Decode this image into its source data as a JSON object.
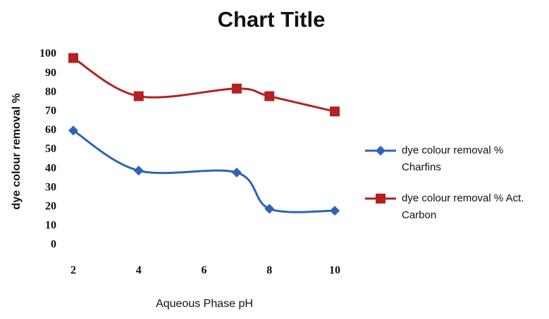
{
  "chart_data": {
    "type": "line",
    "title": "Chart Title",
    "x_label": "Aqueous Phase pH",
    "y_label": "dye colour removal %",
    "x": [
      2,
      4,
      7,
      8,
      10
    ],
    "series": [
      {
        "name": "dye colour removal % Charfins",
        "color": "#2e63b8",
        "marker": "diamond",
        "values": [
          60,
          39,
          38,
          19,
          18
        ]
      },
      {
        "name": "dye colour removal % Act. Carbon",
        "color": "#b22222",
        "marker": "square",
        "values": [
          98,
          78,
          82,
          78,
          70
        ]
      }
    ],
    "xlim": [
      2,
      10
    ],
    "xticks": [
      2,
      4,
      6,
      8,
      10
    ],
    "ylim": [
      0,
      100
    ],
    "yticks": [
      0,
      10,
      20,
      30,
      40,
      50,
      60,
      70,
      80,
      90,
      100
    ],
    "grid": false,
    "legend": "right",
    "smooth": true
  }
}
